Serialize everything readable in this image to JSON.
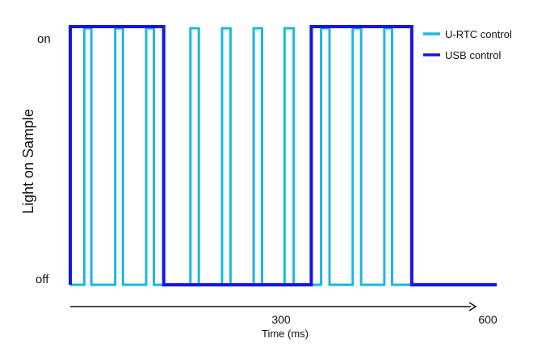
{
  "chart_data": {
    "type": "line",
    "step": true,
    "title": "",
    "xlabel": "Time (ms)",
    "ylabel": "Light on Sample",
    "xlim": [
      0,
      600
    ],
    "x_ticks": [
      300,
      600
    ],
    "y_categories": [
      "off",
      "on"
    ],
    "grid": false,
    "legend_position": "top-right",
    "colors": {
      "U-RTC control": "#1ab8e0",
      "USB control": "#1414e6"
    },
    "series": [
      {
        "name": "U-RTC control",
        "on_intervals_ms": [
          [
            20,
            30
          ],
          [
            64,
            75
          ],
          [
            108,
            119
          ],
          [
            171,
            183
          ],
          [
            216,
            228
          ],
          [
            261,
            273
          ],
          [
            305,
            318
          ],
          [
            357,
            369
          ],
          [
            402,
            414
          ],
          [
            447,
            458
          ]
        ],
        "end_ms": 486
      },
      {
        "name": "USB control",
        "on_intervals_ms": [
          [
            0,
            133
          ],
          [
            343,
            486
          ]
        ],
        "end_ms": 607
      }
    ]
  }
}
